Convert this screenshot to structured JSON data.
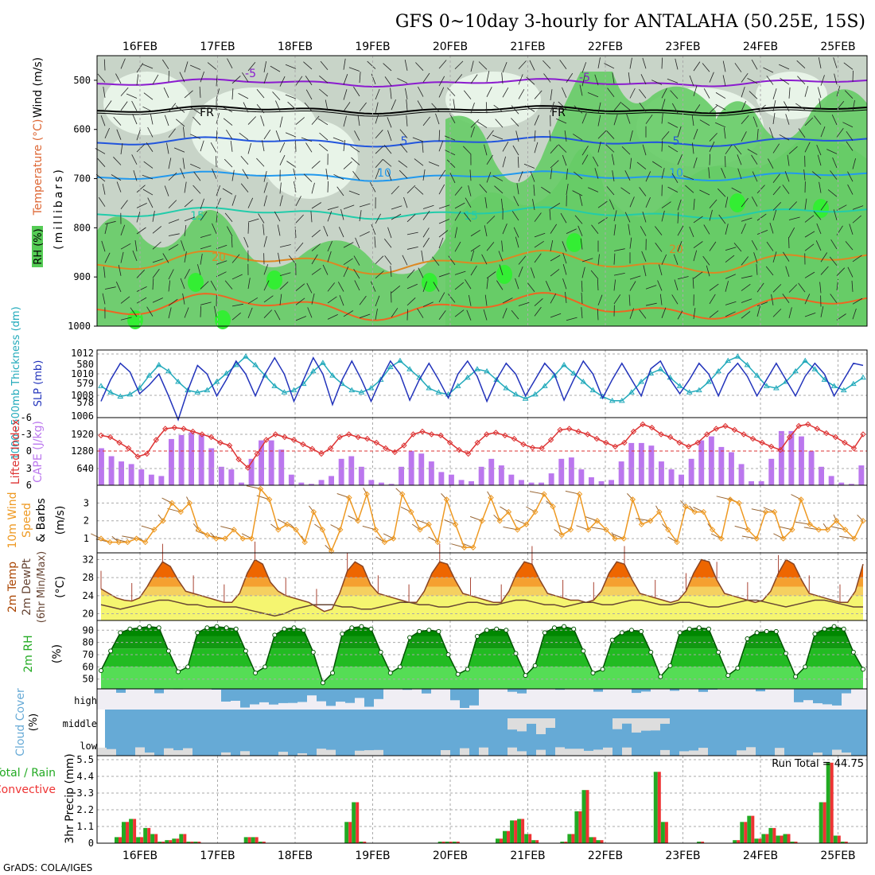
{
  "title": "GFS 0~10day 3-hourly for ANTALAHA (50.25E, 15S)",
  "footer": "GrADS: COLA/IGES",
  "colors": {
    "frame": "#000000",
    "grid": "#aaaaaa",
    "rh_light": "#e8f4e8",
    "rh_mid": "#c8d4c8",
    "rh_green": "#66cc66",
    "rh_bright": "#33ee33",
    "temp_m5": "#8b1bcf",
    "temp_0": "#000000",
    "temp_5": "#2255dd",
    "temp_10": "#2299ee",
    "temp_15": "#22ccaa",
    "temp_20": "#dd8822",
    "temp_25": "#ee6622",
    "temp_30": "#dd1177",
    "slp": "#2233bb",
    "thickness": "#22aabb",
    "cape": "#bb77ee",
    "lifted": "#dd3333",
    "wind_speed": "#ee9922",
    "barb": "#996633",
    "temp_fill_hot": "#ee6600",
    "temp_fill_warm": "#f5a030",
    "temp_fill_mild": "#f5d060",
    "temp_fill_cool": "#f5f570",
    "dewpt": "#664433",
    "minmax": "#aa4433",
    "rh_dark": "#008800",
    "rh_med": "#22bb22",
    "rh_lite": "#55dd55",
    "cloud": "#66aad6",
    "cloud_bg": "#f0eef4",
    "cloud_gap": "#dddddd",
    "precip_total": "#22aa22",
    "precip_conv": "#ee3333"
  },
  "date_labels": [
    "16FEB",
    "17FEB",
    "18FEB",
    "19FEB",
    "20FEB",
    "21FEB",
    "22FEB",
    "23FEB",
    "24FEB",
    "25FEB"
  ],
  "panels": {
    "upper": {
      "ylabel_wind": "Wind (m/s)",
      "ylabel_temp": "Temperature (°C)",
      "ylabel_rh": "RH (%)",
      "ylabel_mb": "(millibars)",
      "ticks": [
        "500",
        "600",
        "700",
        "800",
        "900",
        "1000"
      ],
      "contour_labels": [
        "-5",
        "-5",
        "FR",
        "FR",
        "5",
        "5",
        "10",
        "10",
        "15",
        "15",
        "20",
        "20"
      ]
    },
    "slp": {
      "ylabel_thick": "1000~500mb Thickness (dm)",
      "ylabel_slp": "SLP (mb)",
      "left_ticks": [
        "580",
        "579",
        "578"
      ],
      "right_ticks": [
        "1012",
        "1010",
        "1008",
        "1006"
      ]
    },
    "cape": {
      "ylabel_li": "Lifted Index",
      "ylabel_cape": "CAPE (J/kg)",
      "left_ticks": [
        "-6",
        "-3",
        "0",
        "3",
        "6"
      ],
      "right_ticks": [
        "1920",
        "1280",
        "640"
      ]
    },
    "wind": {
      "ylabel_1": "10m Wind",
      "ylabel_2": "Speed",
      "ylabel_3": "& Barbs",
      "ylabel_4": "(m/s)",
      "ticks": [
        "3",
        "2",
        "1"
      ]
    },
    "temp": {
      "ylabel_1": "2m Temp",
      "ylabel_2": "2m DewPt",
      "ylabel_3": "(6hr Min/Max)",
      "ylabel_4": "(°C)",
      "ticks": [
        "32",
        "28",
        "24",
        "20"
      ]
    },
    "rh": {
      "ylabel_1": "2m RH",
      "ylabel_2": "(%)",
      "ticks": [
        "90",
        "80",
        "70",
        "60",
        "50"
      ]
    },
    "cloud": {
      "ylabel_1": "Cloud Cover",
      "ylabel_2": "(%)",
      "levels": [
        "high",
        "middle",
        "low"
      ]
    },
    "precip": {
      "ylabel_1": "Total / Rain",
      "ylabel_2": "Convective",
      "ylabel_3": "3hr Precip (mm)",
      "ticks": [
        "5.5",
        "4.4",
        "3.3",
        "2.2",
        "1.1",
        "0"
      ],
      "run_total": "Run Total = 44.75"
    }
  },
  "chart_data": [
    {
      "type": "line",
      "title": "1000~500mb Thickness / SLP",
      "series": [
        {
          "name": "SLP (mb)",
          "values": [
            1007.5,
            1009.5,
            1011,
            1010.2,
            1008.2,
            1009,
            1010,
            1008,
            1005.8,
            1008.5,
            1010.8,
            1010,
            1008,
            1009.5,
            1011.2,
            1010,
            1008,
            1010,
            1011.5,
            1010,
            1007.5,
            1009.5,
            1011.5,
            1010,
            1007.2,
            1009.5,
            1011.2,
            1009.5,
            1007.5,
            1009.5,
            1011.2,
            1010,
            1007.6,
            1009.5,
            1011,
            1009.5,
            1007.8,
            1010,
            1011.2,
            1009.8,
            1007.5,
            1009.5,
            1011,
            1010,
            1008,
            1009.5,
            1011,
            1010,
            1007.6,
            1009.5,
            1011.2,
            1010,
            1007.8,
            1009.5,
            1011,
            1009.5,
            1008,
            1010.5,
            1011.2,
            1009.5,
            1008.2,
            1009.5,
            1011,
            1010,
            1008,
            1010,
            1011,
            1009.8,
            1008,
            1009.5,
            1011,
            1009.5,
            1008,
            1009.8,
            1011,
            1010,
            1008,
            1009.5,
            1011,
            1010.8
          ]
        },
        {
          "name": "Thickness (dm)",
          "values": [
            578.8,
            578.5,
            578.3,
            578.4,
            578.7,
            579.3,
            579.8,
            579.5,
            579,
            578.6,
            578.5,
            578.6,
            579,
            579.4,
            579.8,
            580.2,
            579.8,
            579.3,
            578.8,
            578.5,
            578.6,
            578.9,
            579.5,
            579.9,
            579.3,
            578.9,
            578.6,
            578.5,
            578.7,
            579.1,
            579.7,
            580,
            579.6,
            579.2,
            578.7,
            578.5,
            578.4,
            578.8,
            579.2,
            579.6,
            579.5,
            579.1,
            578.7,
            578.4,
            578.2,
            578.4,
            578.8,
            579.3,
            579.8,
            579.4,
            579,
            578.6,
            578.3,
            578.1,
            578.1,
            578.5,
            579,
            579.4,
            579.6,
            579.2,
            578.8,
            578.5,
            578.6,
            579,
            579.5,
            580,
            580.2,
            579.8,
            579.3,
            578.8,
            578.7,
            579,
            579.5,
            580,
            579.6,
            579.1,
            578.8,
            578.6,
            578.9,
            579.2
          ]
        }
      ]
    },
    {
      "type": "bar",
      "title": "CAPE (J/kg) / Lifted Index",
      "series": [
        {
          "name": "CAPE (J/kg)",
          "values": [
            1400,
            1100,
            900,
            800,
            600,
            400,
            350,
            1750,
            1900,
            2000,
            1900,
            1400,
            700,
            600,
            100,
            1000,
            1700,
            1700,
            1350,
            400,
            100,
            50,
            200,
            350,
            1000,
            1100,
            700,
            200,
            100,
            50,
            700,
            1300,
            1200,
            900,
            500,
            400,
            200,
            150,
            700,
            1000,
            750,
            400,
            200,
            100,
            100,
            450,
            1000,
            1050,
            600,
            300,
            150,
            200,
            900,
            1600,
            1600,
            1500,
            900,
            600,
            400,
            1000,
            1700,
            1850,
            1450,
            1250,
            800,
            150,
            150,
            1000,
            2050,
            2050,
            1850,
            1300,
            700,
            350,
            100,
            50,
            750
          ]
        },
        {
          "name": "Lifted Index",
          "values": [
            -2.8,
            -2.5,
            -1.5,
            -0.5,
            1,
            0.5,
            -2,
            -4,
            -4.2,
            -4,
            -3.5,
            -3,
            -2.5,
            -1.5,
            -1,
            1.5,
            3,
            0.5,
            -2,
            -3,
            -2.5,
            -2,
            -1.2,
            -0.4,
            0.5,
            -0.5,
            -2.5,
            -3,
            -2.5,
            -2.2,
            -1.5,
            -0.5,
            0.2,
            -1,
            -3,
            -3.5,
            -3,
            -2.8,
            -1.5,
            -0.2,
            0.5,
            -1.5,
            -3,
            -3.3,
            -2.8,
            -2.2,
            -1.2,
            -0.6,
            -0.5,
            -2,
            -3.8,
            -4,
            -3.5,
            -3,
            -2.2,
            -1.5,
            -0.8,
            -1.5,
            -3.5,
            -4.8,
            -4.2,
            -3,
            -2.5,
            -1.5,
            -0.8,
            -1.5,
            -3,
            -4,
            -4.5,
            -3.8,
            -3,
            -2.2,
            -1.5,
            -0.8,
            -0.2,
            -2.5,
            -4.5,
            -4.8,
            -4,
            -3.2,
            -2.5,
            -1.5,
            -0.5,
            -3
          ]
        }
      ]
    },
    {
      "type": "line",
      "title": "10m Wind Speed",
      "series": [
        {
          "name": "10m Wind Speed (m/s)",
          "values": [
            1,
            0.8,
            0.8,
            0.8,
            1,
            0.8,
            1.5,
            2,
            3,
            2.5,
            3,
            1.5,
            1.2,
            1,
            1,
            1.5,
            1,
            1,
            3.8,
            3.2,
            1.5,
            1.8,
            1.5,
            0.8,
            2.5,
            1.5,
            0.3,
            1.5,
            3.3,
            2,
            3.5,
            1.5,
            0.8,
            1,
            3.5,
            2.5,
            1.5,
            1.8,
            0.8,
            3.2,
            1.8,
            0.5,
            0.5,
            2,
            3.3,
            2,
            2.5,
            1.5,
            1.8,
            2.5,
            3.5,
            2.8,
            1.2,
            1.5,
            3.5,
            1.5,
            2,
            1.5,
            1,
            1,
            3.2,
            1.8,
            2,
            2.5,
            1.5,
            0.8,
            2.8,
            2.5,
            2.5,
            1.5,
            1,
            3.2,
            3,
            1.5,
            1,
            2.5,
            2.5,
            1,
            1.5,
            3.2,
            1.8,
            1.5,
            1.5,
            2,
            1.5,
            1,
            2
          ]
        }
      ]
    },
    {
      "type": "area",
      "title": "2m Temp / 2m DewPt",
      "series": [
        {
          "name": "2m Temp (°C)",
          "values": [
            25.5,
            24.5,
            23.5,
            23,
            22.8,
            23.5,
            26,
            29,
            31.5,
            30.5,
            27.5,
            25,
            24.5,
            24,
            23.5,
            23,
            22.5,
            22.5,
            24.5,
            29,
            32,
            31,
            27,
            25,
            24,
            23.5,
            23,
            22.5,
            21.5,
            20.5,
            21,
            24.5,
            29.5,
            31.5,
            30.5,
            26.5,
            24.5,
            24,
            23.5,
            23,
            22.5,
            22.5,
            25,
            29,
            31.5,
            31,
            27.5,
            24.5,
            24,
            23.5,
            23,
            22.5,
            22.5,
            25,
            29,
            31.5,
            31,
            27.5,
            24.5,
            24,
            23.5,
            23,
            23,
            22.5,
            23,
            25,
            29,
            31.5,
            31,
            27.5,
            24.5,
            24,
            23.5,
            23,
            22.5,
            23,
            25,
            29,
            32,
            31.5,
            27.5,
            24.5,
            24,
            23.5,
            23,
            22.5,
            23,
            25,
            29,
            32,
            31,
            27.5,
            24.5,
            24,
            23.5,
            23,
            22.5,
            22.5,
            25,
            31
          ]
        },
        {
          "name": "2m DewPt (°C)",
          "values": [
            22,
            21.5,
            21,
            21.5,
            22,
            22.5,
            23,
            23,
            22.5,
            22,
            22,
            21.5,
            21.5,
            21.5,
            21.5,
            21,
            20.5,
            20,
            19.5,
            20,
            21,
            21.5,
            22,
            22,
            22,
            21.5,
            21.5,
            21,
            21,
            21.5,
            22,
            22.5,
            22.5,
            22,
            22,
            21.5,
            21.5,
            22,
            22.5,
            22.5,
            22,
            22,
            22.5,
            23,
            23,
            22.5,
            22,
            22,
            21.5,
            22,
            22.5,
            22.5,
            22,
            22,
            22.5,
            23,
            23,
            22.5,
            22,
            22,
            22.5,
            22.5,
            22,
            21.5,
            21.5,
            22,
            22.5,
            23,
            23,
            22.5,
            22,
            21.5,
            22,
            22.5,
            23,
            23,
            22.5,
            22,
            21.5,
            21.5
          ]
        }
      ]
    },
    {
      "type": "area",
      "title": "2m RH",
      "series": [
        {
          "name": "2m RH (%)",
          "values": [
            57,
            73,
            88,
            91,
            92,
            93,
            92,
            73,
            56,
            60,
            88,
            92,
            93,
            92,
            91,
            73,
            55,
            60,
            86,
            91,
            92,
            90,
            72,
            47,
            55,
            87,
            92,
            93,
            91,
            72,
            55,
            60,
            84,
            89,
            90,
            89,
            70,
            54,
            58,
            85,
            90,
            91,
            90,
            71,
            53,
            61,
            88,
            92,
            93,
            91,
            73,
            55,
            58,
            82,
            88,
            90,
            89,
            72,
            52,
            61,
            88,
            91,
            92,
            91,
            72,
            53,
            59,
            83,
            88,
            89,
            89,
            71,
            52,
            60,
            87,
            91,
            93,
            91,
            72,
            58
          ]
        }
      ]
    },
    {
      "type": "bar",
      "title": "3hr Precip (mm)",
      "series": [
        {
          "name": "Total",
          "values": [
            0.4,
            1.4,
            1.6,
            0.4,
            1,
            0.6,
            0.1,
            0.2,
            0.3,
            0.6,
            0.1,
            0.1,
            0,
            0,
            0,
            0,
            0,
            0,
            0.4,
            0.4,
            0.1,
            0,
            0,
            0,
            0,
            0,
            0,
            0,
            0,
            0,
            0,
            0,
            1.4,
            2.7,
            0.1,
            0,
            0,
            0,
            0,
            0,
            0,
            0,
            0,
            0,
            0,
            0.1,
            0.1,
            0.1,
            0,
            0,
            0,
            0,
            0,
            0.3,
            0.8,
            1.5,
            1.6,
            0.6,
            0.2,
            0,
            0,
            0,
            0.1,
            0.6,
            2.1,
            3.5,
            0.4,
            0.2,
            0,
            0,
            0,
            0,
            0,
            0,
            0,
            4.7,
            1.4,
            0,
            0,
            0,
            0,
            0.1,
            0,
            0,
            0,
            0,
            0.2,
            1.4,
            1.8,
            0.3,
            0.6,
            1,
            0.5,
            0.6,
            0.1,
            0,
            0,
            0,
            2.7,
            5.3,
            0.5,
            0.1,
            0,
            0,
            0,
            0
          ]
        },
        {
          "name": "Convective",
          "values": [
            0.4,
            1.4,
            1.6,
            0.4,
            1,
            0.6,
            0.1,
            0.2,
            0.3,
            0.6,
            0.1,
            0.1,
            0,
            0,
            0,
            0,
            0,
            0,
            0.4,
            0.4,
            0.1,
            0,
            0,
            0,
            0,
            0,
            0,
            0,
            0,
            0,
            0,
            0,
            1.4,
            2.7,
            0.1,
            0,
            0,
            0,
            0,
            0,
            0,
            0,
            0,
            0,
            0,
            0.1,
            0.1,
            0.1,
            0,
            0,
            0,
            0,
            0,
            0.3,
            0.8,
            1.5,
            1.6,
            0.6,
            0.2,
            0,
            0,
            0,
            0.1,
            0.6,
            2.1,
            3.5,
            0.4,
            0.2,
            0,
            0,
            0,
            0,
            0,
            0,
            0,
            4.7,
            1.4,
            0,
            0,
            0,
            0,
            0.1,
            0,
            0,
            0,
            0,
            0.2,
            1.4,
            1.8,
            0.3,
            0.6,
            1,
            0.5,
            0.6,
            0.1,
            0,
            0,
            0,
            2.7,
            5.3,
            0.5,
            0.1,
            0,
            0,
            0,
            0
          ]
        }
      ]
    }
  ]
}
